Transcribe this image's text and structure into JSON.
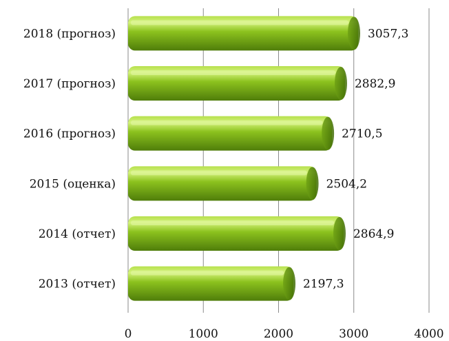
{
  "chart_data": {
    "type": "bar",
    "orientation": "horizontal",
    "categories": [
      "2018 (прогноз)",
      "2017 (прогноз)",
      "2016 (прогноз)",
      "2015 (оценка)",
      "2014 (отчет)",
      "2013 (отчет)"
    ],
    "values": [
      3057.3,
      2882.9,
      2710.5,
      2504.2,
      2864.9,
      2197.3
    ],
    "value_labels": [
      "3057,3",
      "2882,9",
      "2710,5",
      "2504,2",
      "2864,9",
      "2197,3"
    ],
    "title": "",
    "xlabel": "",
    "ylabel": "",
    "xlim": [
      0,
      4000
    ],
    "xticks": [
      "0",
      "1000",
      "2000",
      "3000",
      "4000"
    ],
    "grid": "vertical",
    "legend": "none",
    "colors": {
      "bar_dark": "#5c8a10",
      "bar_mid": "#8cc21e",
      "bar_light": "#c8ec6a",
      "grid": "#8a8a8a"
    }
  }
}
